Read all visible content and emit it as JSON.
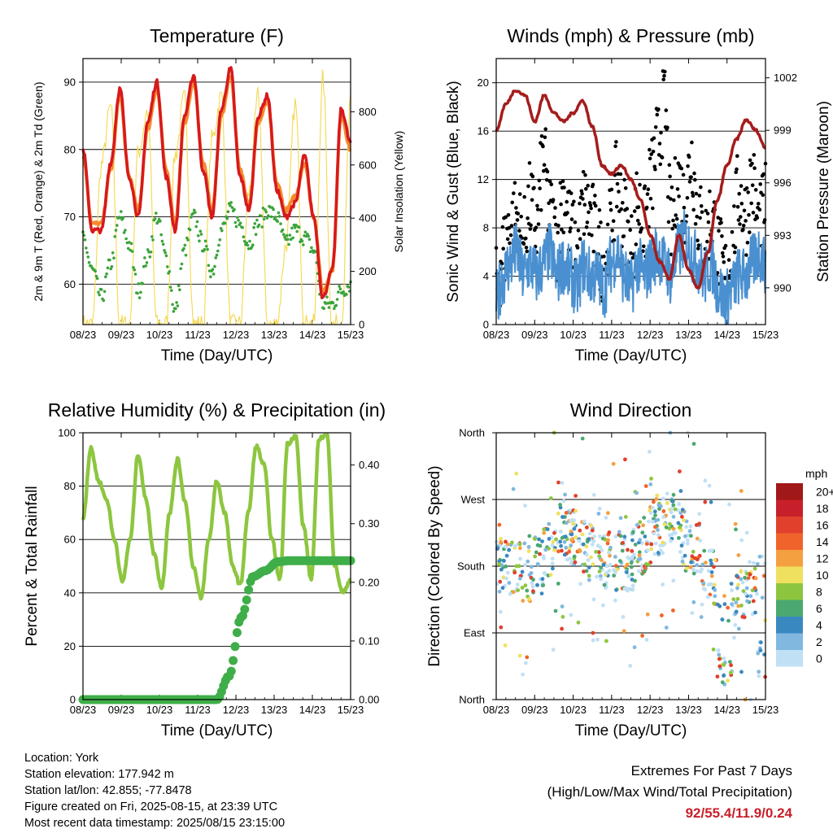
{
  "chart_data": [
    {
      "type": "line",
      "title": "Temperature (F)",
      "xlabel": "Time (Day/UTC)",
      "ylabel": "2m & 9m T (Red, Orange) & 2m Td (Green)",
      "y2label": "Solar Insolation (Yellow)",
      "x_ticks": [
        "08/23",
        "09/23",
        "10/23",
        "11/23",
        "12/23",
        "13/23",
        "14/23",
        "15/23"
      ],
      "y_ticks": [
        60,
        70,
        80,
        90
      ],
      "y2_ticks": [
        0,
        200,
        400,
        600,
        800
      ],
      "ylim": [
        54,
        93.5
      ],
      "y2lim": [
        0,
        1000
      ],
      "grid": true,
      "series": [
        {
          "name": "2m T",
          "color": "#d7191c",
          "values": [
            80,
            68,
            68,
            78,
            89,
            76,
            70,
            84,
            90,
            76,
            68,
            85,
            91,
            77,
            70,
            86,
            92,
            76,
            71,
            85,
            88,
            74,
            70,
            72,
            79,
            70,
            58,
            62,
            86,
            81
          ]
        },
        {
          "name": "9m T",
          "color": "#f58a2c",
          "values": [
            79,
            69,
            69,
            77,
            88,
            76,
            71,
            83,
            89,
            77,
            69,
            84,
            90,
            78,
            71,
            85,
            91,
            77,
            72,
            84,
            87,
            75,
            71,
            73,
            78,
            70,
            59,
            62,
            85,
            80
          ]
        },
        {
          "name": "2m Td",
          "color": "#3aa43a",
          "values": [
            67,
            62,
            58,
            63,
            70,
            66,
            59,
            64,
            70,
            64,
            56,
            65,
            70,
            66,
            62,
            68,
            71,
            69,
            66,
            69,
            71,
            70,
            66,
            68,
            67,
            65,
            57,
            57,
            59,
            60
          ]
        },
        {
          "name": "Solar Insolation",
          "color": "#f4d84e",
          "values": [
            0,
            0,
            600,
            820,
            0,
            0,
            650,
            800,
            0,
            0,
            640,
            850,
            0,
            0,
            700,
            860,
            0,
            0,
            500,
            860,
            0,
            0,
            300,
            830,
            0,
            0,
            920,
            0,
            0,
            830
          ]
        }
      ]
    },
    {
      "type": "scatter",
      "title": "Winds (mph) & Pressure (mb)",
      "xlabel": "Time (Day/UTC)",
      "ylabel": "Sonic Wind & Gust (Blue, Black)",
      "y2label": "Station Pressure (Maroon)",
      "x_ticks": [
        "08/23",
        "09/23",
        "10/23",
        "11/23",
        "12/23",
        "13/23",
        "14/23",
        "15/23"
      ],
      "y_ticks": [
        0,
        4,
        8,
        12,
        16,
        20
      ],
      "y2_ticks": [
        990,
        993,
        996,
        999,
        1002
      ],
      "ylim": [
        0,
        22
      ],
      "y2lim": [
        987.9,
        1003.1
      ],
      "grid": true,
      "series": [
        {
          "name": "Sonic Wind",
          "color": "#4a90d0",
          "values": [
            2,
            4,
            5,
            6,
            4,
            5,
            4,
            5,
            6,
            4,
            5,
            4,
            3,
            5,
            4,
            4,
            3,
            5,
            6,
            4,
            3,
            5,
            4,
            5,
            6,
            5,
            4,
            6,
            7,
            6,
            5,
            4,
            5,
            3,
            2,
            3,
            4,
            4,
            5,
            6,
            5
          ]
        },
        {
          "name": "Gust",
          "color": "#000000",
          "values": [
            3,
            6,
            8,
            9,
            7,
            10,
            8,
            14,
            9,
            7,
            11,
            8,
            6,
            10,
            9,
            7,
            5,
            8,
            12,
            9,
            6,
            10,
            8,
            12,
            15,
            18,
            8,
            12,
            10,
            14,
            9,
            7,
            9,
            6,
            4,
            6,
            11,
            9,
            12,
            8,
            10
          ]
        },
        {
          "name": "Station Pressure",
          "color": "#a51c1c",
          "values": [
            999,
            1000.5,
            1001.3,
            1001,
            999.5,
            1001,
            1000,
            999.5,
            1000,
            1000.7,
            999.2,
            997,
            996.5,
            997,
            996.2,
            995,
            993,
            991.5,
            990.5,
            993,
            991,
            990,
            992,
            995,
            997,
            998.5,
            999.6,
            999,
            998
          ]
        }
      ]
    },
    {
      "type": "line",
      "title": "Relative Humidity (%) & Precipitation (in)",
      "xlabel": "Time (Day/UTC)",
      "ylabel": "Percent & Total Rainfall",
      "x_ticks": [
        "08/23",
        "09/23",
        "10/23",
        "11/23",
        "12/23",
        "13/23",
        "14/23",
        "15/23"
      ],
      "y_ticks": [
        0,
        20,
        40,
        60,
        80,
        100
      ],
      "y2_ticks": [
        "0.00",
        "0.10",
        "0.20",
        "0.30",
        "0.40"
      ],
      "ylim": [
        0,
        100
      ],
      "y2lim": [
        0,
        0.455
      ],
      "grid": true,
      "series": [
        {
          "name": "Relative Humidity",
          "color": "#8cc63f",
          "values": [
            68,
            94,
            82,
            75,
            60,
            44,
            60,
            92,
            75,
            55,
            42,
            70,
            90,
            74,
            50,
            38,
            60,
            82,
            70,
            50,
            43,
            70,
            95,
            88,
            60,
            45,
            96,
            99,
            65,
            45,
            98,
            99,
            50,
            40,
            45
          ]
        },
        {
          "name": "Total Precipitation",
          "color": "#3fae49",
          "values": [
            0,
            0,
            0,
            0,
            0,
            0,
            0,
            0,
            0,
            0,
            0,
            0,
            0.04,
            0.14,
            0.21,
            0.22,
            0.235,
            0.237,
            0.237,
            0.237,
            0.237,
            0.237,
            0.237
          ]
        }
      ]
    },
    {
      "type": "scatter",
      "title": "Wind Direction",
      "xlabel": "Time (Day/UTC)",
      "ylabel": "Direction (Colored By Speed)",
      "x_ticks": [
        "08/23",
        "09/23",
        "10/23",
        "11/23",
        "12/23",
        "13/23",
        "14/23",
        "15/23"
      ],
      "y_ticks": [
        "North",
        "East",
        "South",
        "West",
        "North"
      ],
      "ylim": [
        0,
        360
      ],
      "colorbar_title": "mph",
      "colorbar_labels": [
        "20+",
        "18",
        "16",
        "14",
        "12",
        "10",
        "8",
        "6",
        "4",
        "2",
        "0"
      ],
      "colorbar_colors": [
        "#a01818",
        "#c8202a",
        "#e0402c",
        "#f0642c",
        "#f5a040",
        "#f0e060",
        "#8cc63f",
        "#4aa870",
        "#3a88c0",
        "#80b8e0",
        "#c0e0f5"
      ]
    }
  ],
  "info": {
    "location": "Location: York",
    "elevation": "Station elevation: 177.942 m",
    "latlon": "Station lat/lon: 42.855; -77.8478",
    "created": "Figure created on Fri, 2025-08-15, at 23:39 UTC",
    "recent": "Most recent data timestamp: 2025/08/15 23:15:00"
  },
  "extremes": {
    "title": "Extremes For Past 7 Days",
    "subtitle": "(High/Low/Max Wind/Total Precipitation)",
    "values": "92/55.4/11.9/0.24"
  }
}
